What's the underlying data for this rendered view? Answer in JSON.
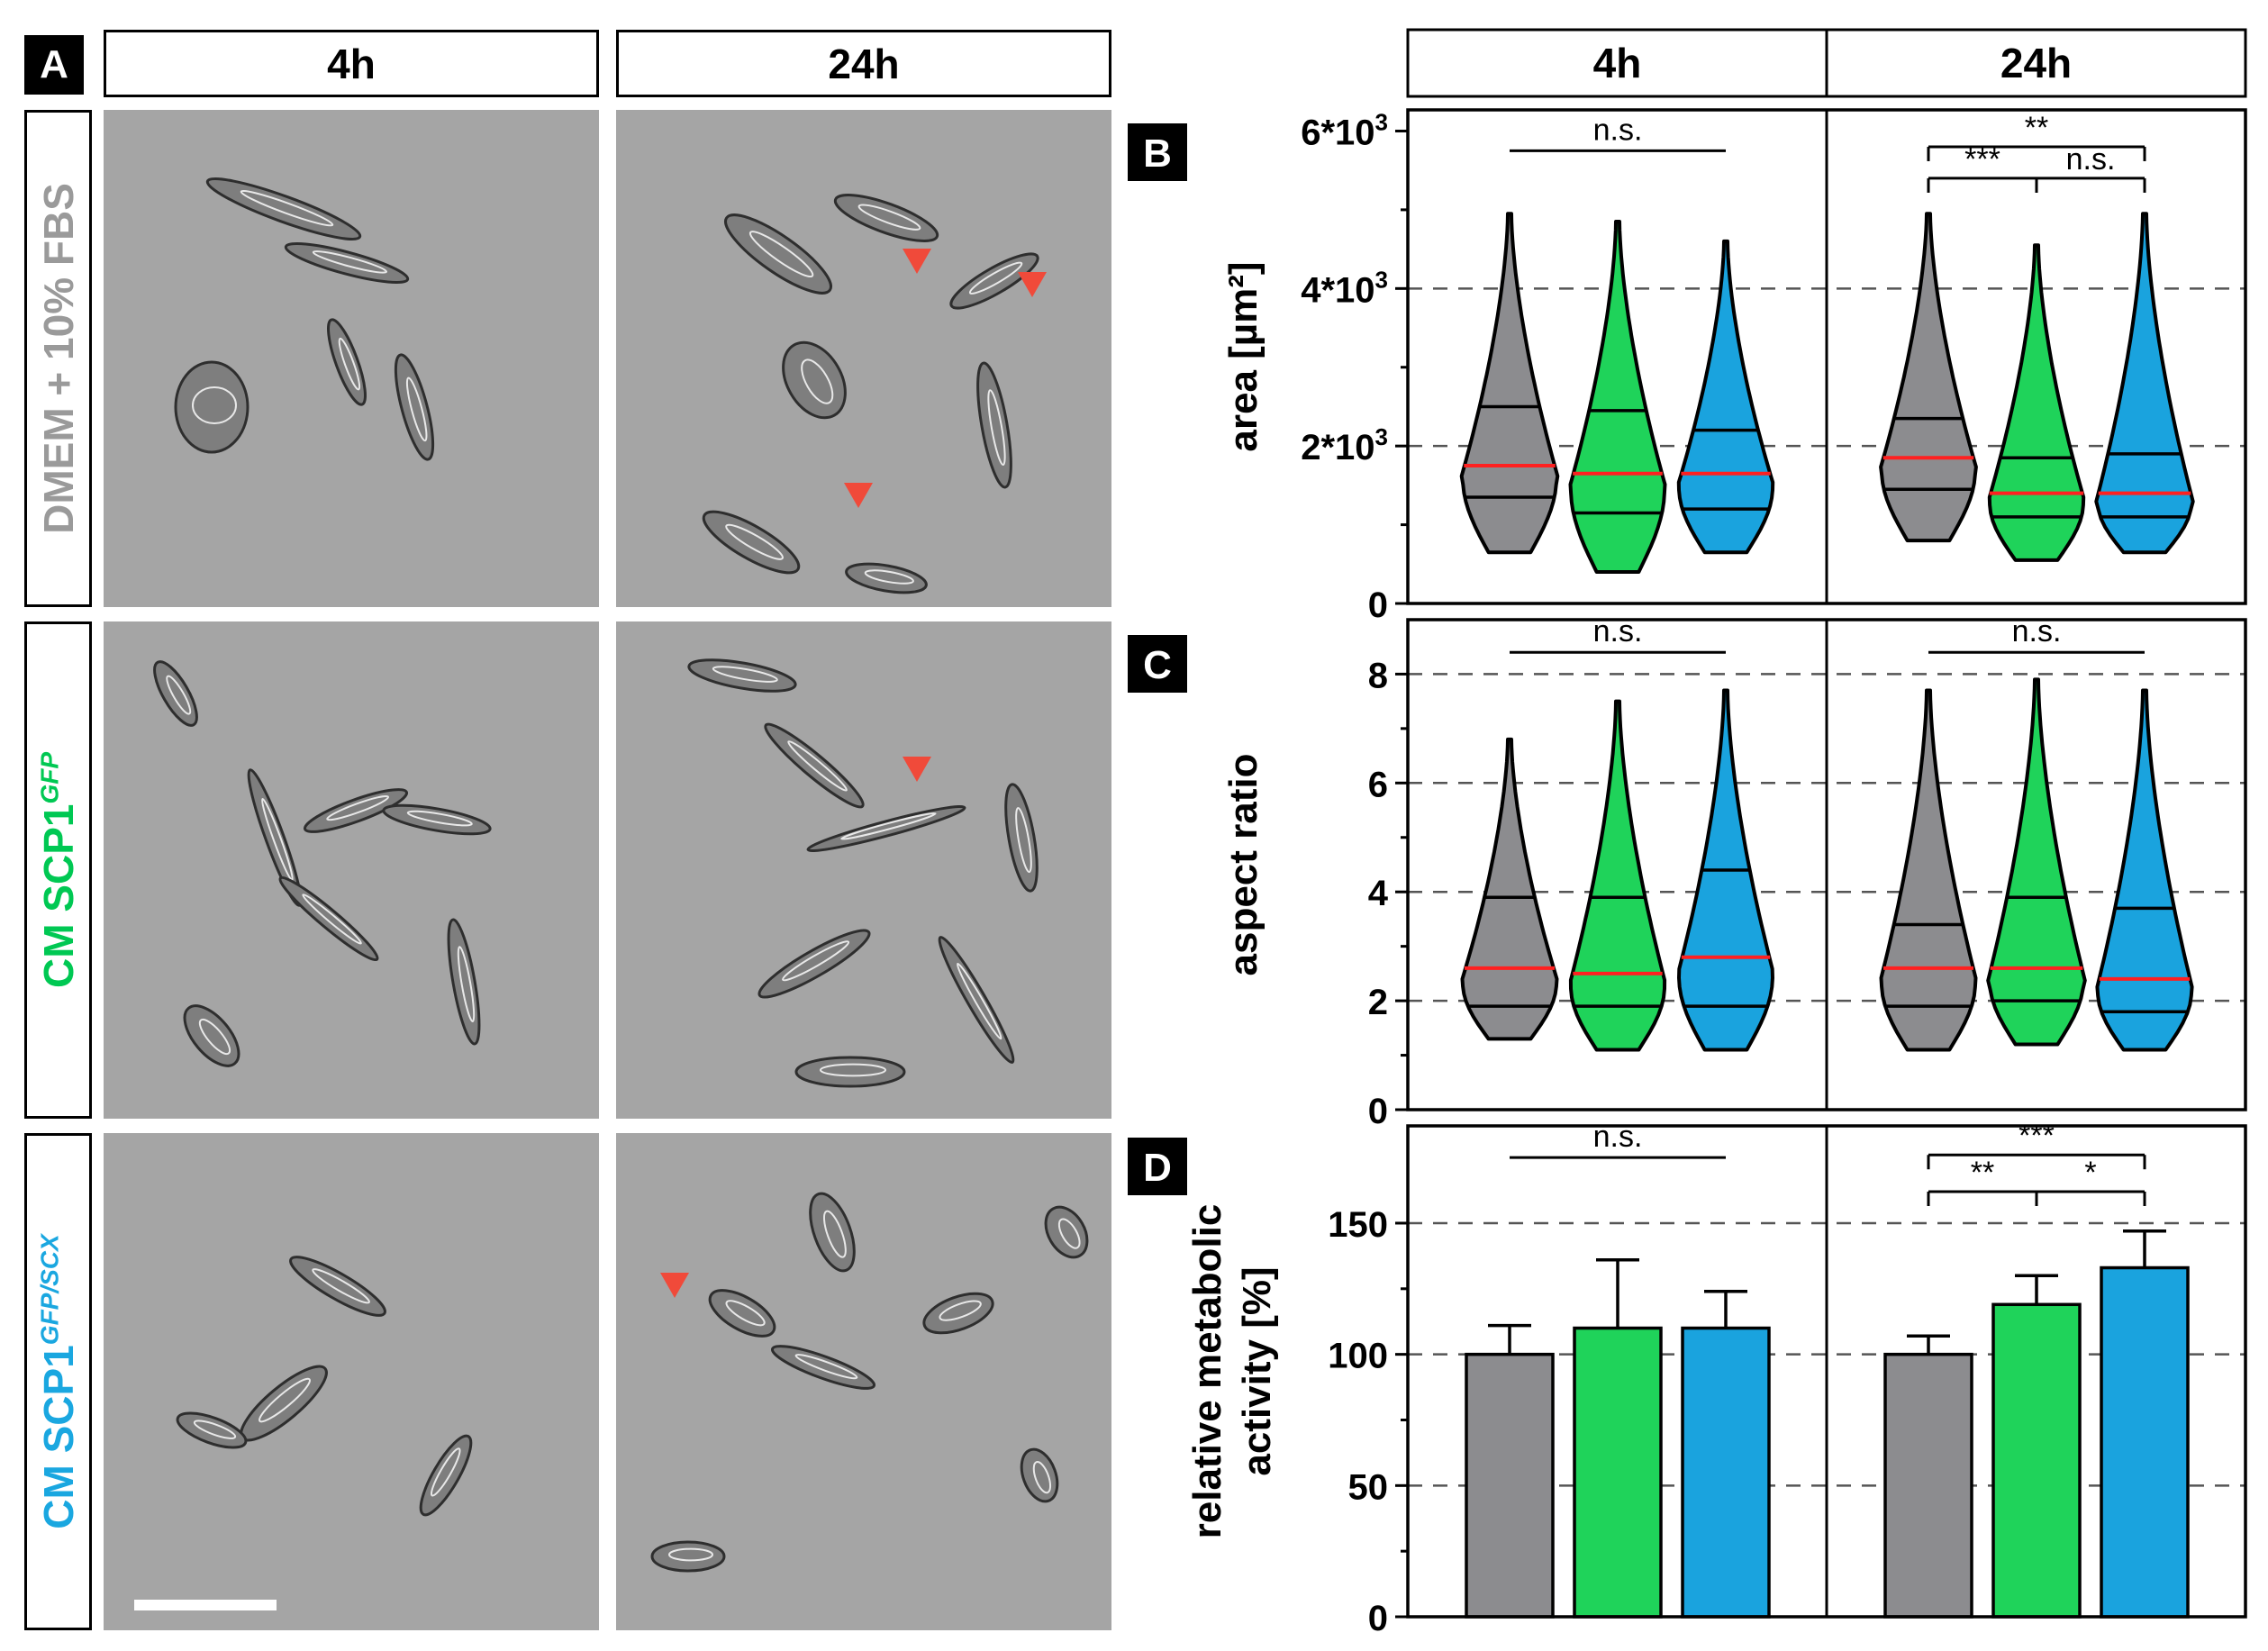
{
  "panel_a": {
    "letter": "A",
    "columns": [
      "4h",
      "24h"
    ],
    "rows": [
      {
        "label": "DMEM + 10% FBS",
        "parts": [
          {
            "text": "DMEM + 10% FBS",
            "color": "#9a9a9a"
          }
        ]
      },
      {
        "label": "CM SCP1GFP",
        "parts": [
          {
            "text": "CM ",
            "color": "#00c853"
          },
          {
            "text": "SCP1",
            "color": "#00c853"
          },
          {
            "text": "GFP",
            "color": "#00c853",
            "sup": true
          }
        ]
      },
      {
        "label": "CM SCP1GFP/SCX",
        "parts": [
          {
            "text": "CM ",
            "color": "#1aa7e0"
          },
          {
            "text": "SCP1",
            "color": "#1aa7e0"
          },
          {
            "text": "GFP/SCX",
            "color": "#1aa7e0",
            "sup": true
          }
        ]
      }
    ],
    "arrowhead_color": "#f04a3a",
    "scale_bar_color": "#ffffff"
  },
  "plot_headers": [
    "4h",
    "24h"
  ],
  "colors": {
    "control": "#8c8c8f",
    "scp1_gfp": "#1fd35a",
    "scp1_gfp_scx": "#1aa3de",
    "median": "#ff2020"
  },
  "chart_data": [
    {
      "panel": "B",
      "type": "violin",
      "ylabel": "area [µm²]",
      "ylim": [
        0,
        6200
      ],
      "yticks": [
        0,
        2000,
        4000,
        6000
      ],
      "ytick_labels": [
        "0",
        "2*10³",
        "4*10³",
        "6*10³"
      ],
      "dashed_gridlines": [
        2000,
        4000
      ],
      "groups": [
        {
          "time": "4h",
          "violins": [
            {
              "color": "scp1_ctrl",
              "min": 650,
              "q1": 1350,
              "median": 1750,
              "q3": 2500,
              "max": 4950
            },
            {
              "color": "gfp",
              "min": 400,
              "q1": 1150,
              "median": 1650,
              "q3": 2450,
              "max": 4850
            },
            {
              "color": "scx",
              "min": 650,
              "q1": 1200,
              "median": 1650,
              "q3": 2200,
              "max": 4600
            }
          ]
        },
        {
          "time": "24h",
          "violins": [
            {
              "color": "scp1_ctrl",
              "min": 800,
              "q1": 1450,
              "median": 1850,
              "q3": 2350,
              "max": 4950
            },
            {
              "color": "gfp",
              "min": 550,
              "q1": 1100,
              "median": 1400,
              "q3": 1850,
              "max": 4550
            },
            {
              "color": "scx",
              "min": 650,
              "q1": 1100,
              "median": 1400,
              "q3": 1900,
              "max": 4950
            }
          ]
        }
      ],
      "significance": [
        {
          "time": "4h",
          "from": 0,
          "to": 2,
          "label": "n.s.",
          "y": 5750,
          "simple": true
        },
        {
          "time": "24h",
          "from": 0,
          "to": 2,
          "label": "**",
          "y": 5800
        },
        {
          "time": "24h",
          "from": 0,
          "to": 1,
          "label": "***",
          "y": 5400,
          "shared": true
        },
        {
          "time": "24h",
          "from": 1,
          "to": 2,
          "label": "n.s.",
          "y": 5400,
          "shared": true
        }
      ]
    },
    {
      "panel": "C",
      "type": "violin",
      "ylabel": "aspect ratio",
      "ylim": [
        0,
        8.9
      ],
      "yticks": [
        0,
        2,
        4,
        6,
        8
      ],
      "ytick_labels": [
        "0",
        "2",
        "4",
        "6",
        "8"
      ],
      "dashed_gridlines": [
        2,
        4,
        6,
        8
      ],
      "groups": [
        {
          "time": "4h",
          "violins": [
            {
              "color": "scp1_ctrl",
              "min": 1.3,
              "q1": 1.9,
              "median": 2.6,
              "q3": 3.9,
              "max": 6.8
            },
            {
              "color": "gfp",
              "min": 1.1,
              "q1": 1.9,
              "median": 2.5,
              "q3": 3.9,
              "max": 7.5
            },
            {
              "color": "scx",
              "min": 1.1,
              "q1": 1.9,
              "median": 2.8,
              "q3": 4.4,
              "max": 7.7
            }
          ]
        },
        {
          "time": "24h",
          "violins": [
            {
              "color": "scp1_ctrl",
              "min": 1.1,
              "q1": 1.9,
              "median": 2.6,
              "q3": 3.4,
              "max": 7.7
            },
            {
              "color": "gfp",
              "min": 1.2,
              "q1": 2.0,
              "median": 2.6,
              "q3": 3.9,
              "max": 7.9
            },
            {
              "color": "scx",
              "min": 1.1,
              "q1": 1.8,
              "median": 2.4,
              "q3": 3.7,
              "max": 7.7
            }
          ]
        }
      ],
      "significance": [
        {
          "time": "4h",
          "from": 0,
          "to": 2,
          "label": "n.s.",
          "y": 8.4,
          "simple": true
        },
        {
          "time": "24h",
          "from": 0,
          "to": 2,
          "label": "n.s.",
          "y": 8.4,
          "simple": true
        }
      ]
    },
    {
      "panel": "D",
      "type": "bar",
      "ylabel": [
        "relative metabolic",
        "activity [%]"
      ],
      "ylim": [
        0,
        185
      ],
      "yticks": [
        0,
        50,
        100,
        150
      ],
      "ytick_labels": [
        "0",
        "50",
        "100",
        "150"
      ],
      "dashed_gridlines": [
        50,
        100,
        150
      ],
      "groups": [
        {
          "time": "4h",
          "bars": [
            {
              "color": "scp1_ctrl",
              "value": 100,
              "error": 11
            },
            {
              "color": "gfp",
              "value": 110,
              "error": 26
            },
            {
              "color": "scx",
              "value": 110,
              "error": 14
            }
          ]
        },
        {
          "time": "24h",
          "bars": [
            {
              "color": "scp1_ctrl",
              "value": 100,
              "error": 7
            },
            {
              "color": "gfp",
              "value": 119,
              "error": 11
            },
            {
              "color": "scx",
              "value": 133,
              "error": 14
            }
          ]
        }
      ],
      "significance": [
        {
          "time": "4h",
          "from": 0,
          "to": 2,
          "label": "n.s.",
          "y": 175,
          "simple": true
        },
        {
          "time": "24h",
          "from": 0,
          "to": 2,
          "label": "***",
          "y": 176
        },
        {
          "time": "24h",
          "from": 0,
          "to": 1,
          "label": "**",
          "y": 162,
          "shared": true
        },
        {
          "time": "24h",
          "from": 1,
          "to": 2,
          "label": "*",
          "y": 162,
          "shared": true
        }
      ]
    }
  ]
}
